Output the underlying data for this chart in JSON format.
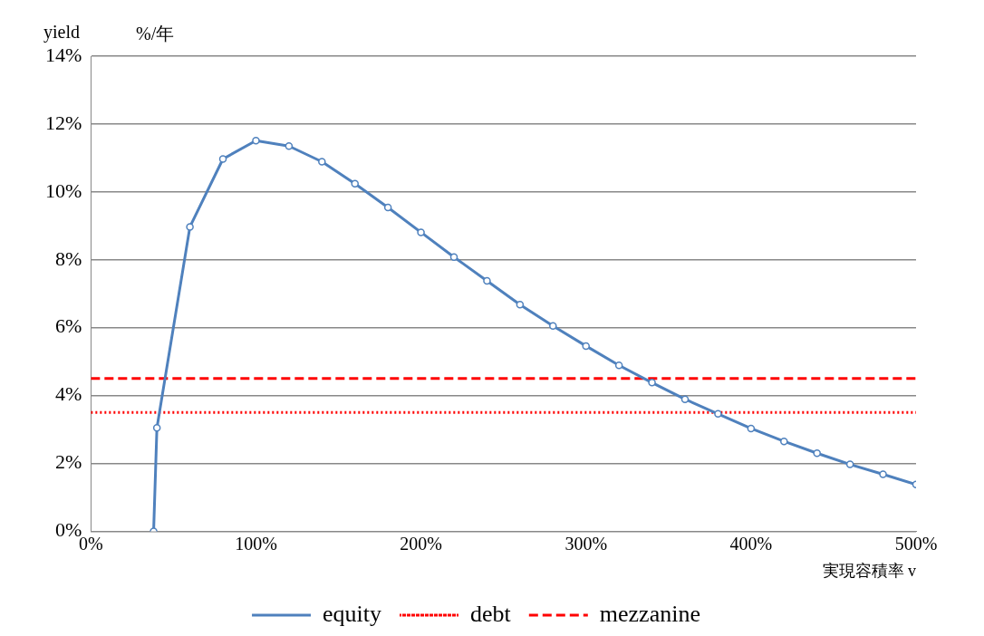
{
  "chart_data": {
    "type": "line",
    "ylabel": "yield",
    "annotations": [
      "%/年"
    ],
    "xlabel": "実現容積率 v",
    "xlim": [
      0,
      500
    ],
    "xticks": [
      {
        "value": 0,
        "label": "0%"
      },
      {
        "value": 100,
        "label": "100%"
      },
      {
        "value": 200,
        "label": "200%"
      },
      {
        "value": 300,
        "label": "300%"
      },
      {
        "value": 400,
        "label": "400%"
      },
      {
        "value": 500,
        "label": "500%"
      }
    ],
    "ylim": [
      0,
      14
    ],
    "yticks": [
      {
        "value": 0,
        "label": "0%"
      },
      {
        "value": 2,
        "label": "2%"
      },
      {
        "value": 4,
        "label": "4%"
      },
      {
        "value": 6,
        "label": "6%"
      },
      {
        "value": 8,
        "label": "8%"
      },
      {
        "value": 10,
        "label": "10%"
      },
      {
        "value": 12,
        "label": "12%"
      },
      {
        "value": 14,
        "label": "14%"
      }
    ],
    "grid": "y",
    "legend": "bottom",
    "series": [
      {
        "name": "equity",
        "color": "#4f81bd",
        "marker": "circle",
        "line_style": "solid",
        "x": [
          38,
          40,
          60,
          80,
          100,
          120,
          140,
          160,
          180,
          200,
          220,
          240,
          260,
          280,
          300,
          320,
          340,
          360,
          380,
          400,
          420,
          440,
          460,
          480,
          500
        ],
        "values": [
          0,
          3.05,
          8.97,
          10.97,
          11.51,
          11.35,
          10.89,
          10.24,
          9.54,
          8.81,
          8.08,
          7.38,
          6.68,
          6.05,
          5.46,
          4.89,
          4.38,
          3.89,
          3.46,
          3.03,
          2.65,
          2.3,
          1.97,
          1.68,
          1.38
        ]
      },
      {
        "name": "debt",
        "color": "#ff0000",
        "marker": "none",
        "line_style": "dotted",
        "x": [
          0,
          500
        ],
        "values": [
          3.5,
          3.5
        ]
      },
      {
        "name": "mezzanine",
        "color": "#ff0000",
        "marker": "none",
        "line_style": "dashed",
        "x": [
          0,
          500
        ],
        "values": [
          4.5,
          4.5
        ]
      }
    ]
  }
}
